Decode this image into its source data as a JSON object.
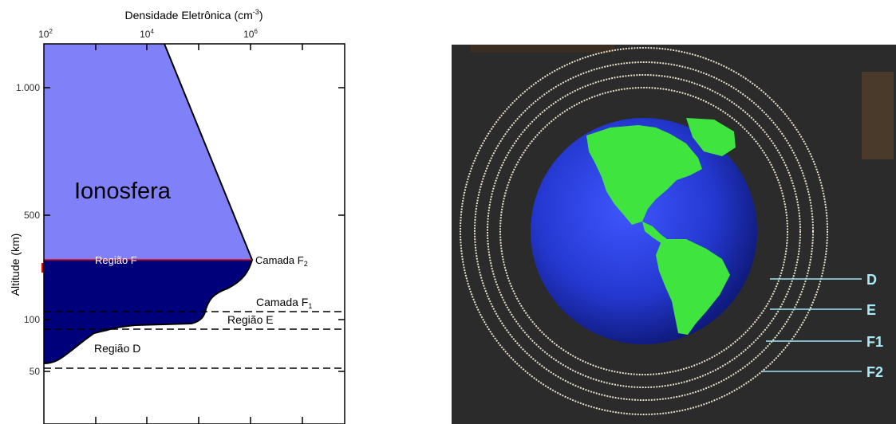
{
  "chart_data": {
    "type": "area",
    "title": "Densidade Eletrônica (cm",
    "title_sup": "-3",
    "title_close": ")",
    "ylabel": "Altitude (km)",
    "x_scale": "log",
    "x_ticks": [
      {
        "base": "10",
        "exp": "2",
        "value": 100
      },
      {
        "base": "10",
        "exp": "4",
        "value": 10000
      },
      {
        "base": "10",
        "exp": "6",
        "value": 1000000
      }
    ],
    "y_ticks": [
      {
        "label": "1.000",
        "value": 1000
      },
      {
        "label": "500",
        "value": 500
      },
      {
        "label": "100",
        "value": 100
      },
      {
        "label": "50",
        "value": 50
      }
    ],
    "region_labels": {
      "ionosphere": "Ionosfera",
      "f": "Região F",
      "e": "Região E",
      "d": "Região D"
    },
    "layer_labels": {
      "f2_base": "Camada F",
      "f2_sub": "2",
      "f1_base": "Camada F",
      "f1_sub": "1"
    },
    "colors": {
      "upper_fill": "#8080f8",
      "lower_fill": "#00007a",
      "divider": "#e00000"
    }
  },
  "earth_diagram": {
    "background": "#2b2b2b",
    "ocean": "#2a3ad8",
    "land": "#3fe43f",
    "ring_color": "#e8e0c8",
    "leader_color": "#9fe7f7",
    "layers": [
      "D",
      "E",
      "F1",
      "F2"
    ]
  }
}
